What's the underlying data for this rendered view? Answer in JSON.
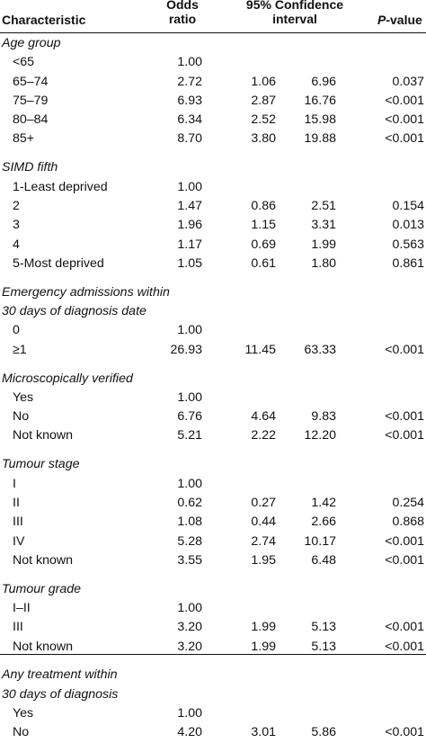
{
  "headers": {
    "characteristic": "Characteristic",
    "odds1": "Odds",
    "odds2": "ratio",
    "ci1": "95% Confidence",
    "ci2": "interval",
    "p_italic": "P",
    "p_rest": "-value"
  },
  "groups": [
    {
      "title": [
        "Age group"
      ],
      "rows": [
        {
          "label": "<65",
          "or": "1.00",
          "lo": "",
          "hi": "",
          "p": ""
        },
        {
          "label": "65–74",
          "or": "2.72",
          "lo": "1.06",
          "hi": "6.96",
          "p": "0.037"
        },
        {
          "label": "75–79",
          "or": "6.93",
          "lo": "2.87",
          "hi": "16.76",
          "p": "<0.001"
        },
        {
          "label": "80–84",
          "or": "6.34",
          "lo": "2.52",
          "hi": "15.98",
          "p": "<0.001"
        },
        {
          "label": "85+",
          "or": "8.70",
          "lo": "3.80",
          "hi": "19.88",
          "p": "<0.001"
        }
      ]
    },
    {
      "title": [
        "SIMD fifth"
      ],
      "rows": [
        {
          "label": "1-Least deprived",
          "or": "1.00",
          "lo": "",
          "hi": "",
          "p": ""
        },
        {
          "label": "2",
          "or": "1.47",
          "lo": "0.86",
          "hi": "2.51",
          "p": "0.154"
        },
        {
          "label": "3",
          "or": "1.96",
          "lo": "1.15",
          "hi": "3.31",
          "p": "0.013"
        },
        {
          "label": "4",
          "or": "1.17",
          "lo": "0.69",
          "hi": "1.99",
          "p": "0.563"
        },
        {
          "label": "5-Most deprived",
          "or": "1.05",
          "lo": "0.61",
          "hi": "1.80",
          "p": "0.861"
        }
      ]
    },
    {
      "title": [
        "Emergency admissions within",
        "30 days of diagnosis date"
      ],
      "rows": [
        {
          "label": "0",
          "or": "1.00",
          "lo": "",
          "hi": "",
          "p": ""
        },
        {
          "label": "≥1",
          "or": "26.93",
          "lo": "11.45",
          "hi": "63.33",
          "p": "<0.001"
        }
      ]
    },
    {
      "title": [
        "Microscopically verified"
      ],
      "rows": [
        {
          "label": "Yes",
          "or": "1.00",
          "lo": "",
          "hi": "",
          "p": ""
        },
        {
          "label": "No",
          "or": "6.76",
          "lo": "4.64",
          "hi": "9.83",
          "p": "<0.001"
        },
        {
          "label": "Not known",
          "or": "5.21",
          "lo": "2.22",
          "hi": "12.20",
          "p": "<0.001"
        }
      ]
    },
    {
      "title": [
        "Tumour stage"
      ],
      "rows": [
        {
          "label": "I",
          "or": "1.00",
          "lo": "",
          "hi": "",
          "p": ""
        },
        {
          "label": "II",
          "or": "0.62",
          "lo": "0.27",
          "hi": "1.42",
          "p": "0.254"
        },
        {
          "label": "III",
          "or": "1.08",
          "lo": "0.44",
          "hi": "2.66",
          "p": "0.868"
        },
        {
          "label": "IV",
          "or": "5.28",
          "lo": "2.74",
          "hi": "10.17",
          "p": "<0.001"
        },
        {
          "label": "Not known",
          "or": "3.55",
          "lo": "1.95",
          "hi": "6.48",
          "p": "<0.001"
        }
      ]
    },
    {
      "title": [
        "Tumour grade"
      ],
      "rows": [
        {
          "label": "I–II",
          "or": "1.00",
          "lo": "",
          "hi": "",
          "p": ""
        },
        {
          "label": "III",
          "or": "3.20",
          "lo": "1.99",
          "hi": "5.13",
          "p": "<0.001"
        },
        {
          "label": "Not known",
          "or": "3.20",
          "lo": "1.99",
          "hi": "5.13",
          "p": "<0.001"
        }
      ]
    },
    {
      "title": [
        "Any treatment within",
        "30 days of diagnosis"
      ],
      "rows": [
        {
          "label": "Yes",
          "or": "1.00",
          "lo": "",
          "hi": "",
          "p": ""
        },
        {
          "label": "No",
          "or": "4.20",
          "lo": "3.01",
          "hi": "5.86",
          "p": "<0.001"
        }
      ]
    }
  ]
}
